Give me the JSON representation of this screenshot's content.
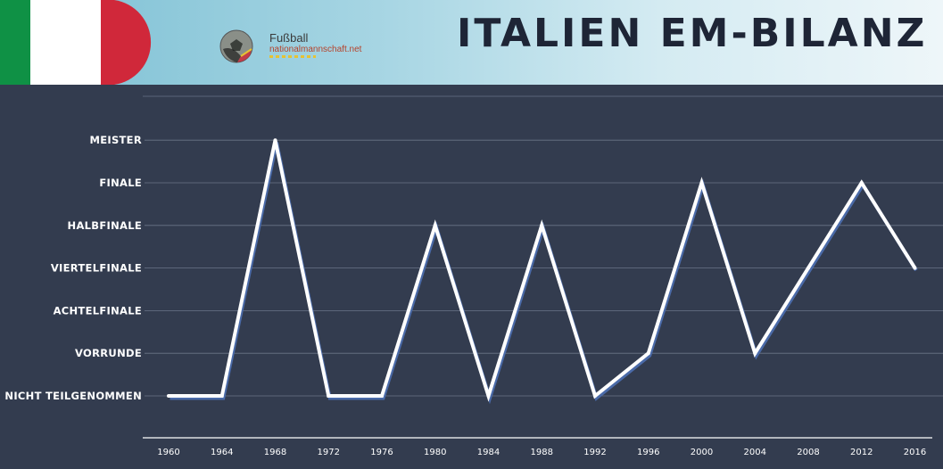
{
  "header": {
    "title": "ITALIEN EM-BILANZ",
    "logo_line1": "Fußball",
    "logo_line2": "nationalmannschaft.net"
  },
  "colors": {
    "background": "#333c4f",
    "flag_green": "#0f9145",
    "flag_white": "#ffffff",
    "flag_red": "#d0283a",
    "line": "#ffffff",
    "line_shadow": "#4a6aa8"
  },
  "chart_data": {
    "type": "line",
    "title": "ITALIEN EM-BILANZ",
    "categories": [
      "1960",
      "1964",
      "1968",
      "1972",
      "1976",
      "1980",
      "1984",
      "1988",
      "1992",
      "1996",
      "2000",
      "2004",
      "2008",
      "2012",
      "2016"
    ],
    "levels": [
      "Nicht teilgenommen",
      "Vorrunde",
      "Achtelfinale",
      "Viertelfinale",
      "Halbfinale",
      "Finale",
      "Meister"
    ],
    "level_labels": [
      "NICHT TEILGENOMMEN",
      "VORRUNDE",
      "ACHTELFINALE",
      "VIERTELFINALE",
      "HALBFINALE",
      "FINALE",
      "MEISTER"
    ],
    "values": [
      0,
      0,
      6,
      0,
      0,
      4,
      0,
      4,
      0,
      1,
      5,
      1,
      3,
      5,
      3
    ],
    "value_labels": [
      "Nicht teilgenommen",
      "Nicht teilgenommen",
      "Meister",
      "Nicht teilgenommen",
      "Nicht teilgenommen",
      "Halbfinale",
      "Nicht teilgenommen",
      "Halbfinale",
      "Nicht teilgenommen",
      "Vorrunde",
      "Finale",
      "Vorrunde",
      "Viertelfinale",
      "Finale",
      "Viertelfinale"
    ],
    "ylim": [
      0,
      6
    ],
    "grid": true,
    "legend": "none"
  }
}
